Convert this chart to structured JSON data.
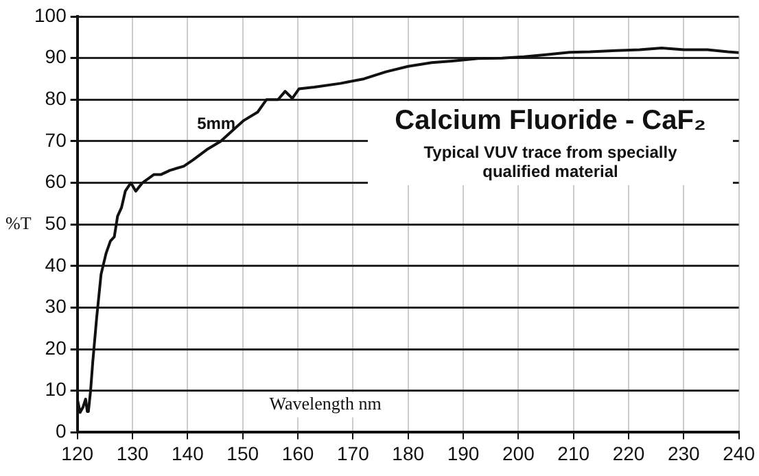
{
  "chart_data": {
    "type": "line",
    "title": "Calcium Fluoride - CaF₂",
    "subtitle": "Typical VUV trace from specially qualified material",
    "xlabel": "Wavelength nm",
    "ylabel": "%T",
    "x": [
      120,
      120.5,
      121,
      121.5,
      121.8,
      122,
      122.4,
      122.8,
      123.5,
      124.3,
      125.2,
      126,
      126.7,
      127.3,
      128,
      128.7,
      129.7,
      130.6,
      131.8,
      133.9,
      135.2,
      136.8,
      139.3,
      141,
      143.5,
      146,
      148.5,
      150.2,
      152.7,
      154.3,
      156.4,
      157.7,
      159,
      160.2,
      163,
      167.7,
      172,
      176,
      180,
      184.3,
      188,
      192.7,
      197,
      201,
      205,
      209.3,
      213,
      217.7,
      222,
      226,
      230,
      234.3,
      238,
      240
    ],
    "series": [
      {
        "color": "#111111",
        "values": [
          8,
          4.8,
          6,
          8,
          5,
          5,
          10,
          17,
          27.5,
          38,
          43,
          46,
          47,
          52,
          54,
          58,
          60,
          58,
          60,
          62,
          62,
          63,
          64,
          65.5,
          68,
          70,
          73,
          75,
          77,
          80,
          80,
          82,
          80.3,
          82.6,
          83,
          83.9,
          85,
          86.7,
          88,
          88.9,
          89.3,
          89.9,
          90,
          90.3,
          90.8,
          91.4,
          91.5,
          91.8,
          92,
          92.4,
          92,
          92,
          91.5,
          91.3
        ]
      }
    ],
    "xlim": [
      120,
      240
    ],
    "xticks": [
      120,
      130,
      140,
      150,
      160,
      170,
      180,
      190,
      200,
      210,
      220,
      230,
      240
    ],
    "ylim": [
      0,
      100
    ],
    "yticks": [
      0,
      10,
      20,
      30,
      40,
      50,
      60,
      70,
      80,
      90,
      100
    ],
    "grid": true,
    "legend": false,
    "marker": "none",
    "line_style": "solid",
    "annotations": [
      "5mm"
    ]
  }
}
